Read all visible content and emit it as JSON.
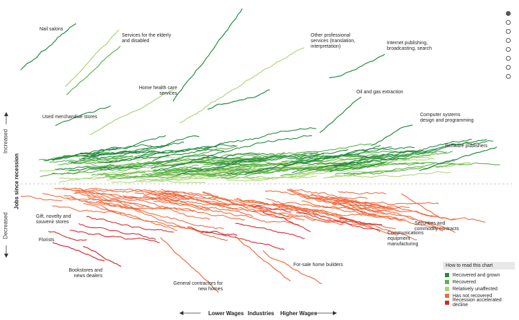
{
  "chart_data": {
    "type": "line",
    "y_axis": {
      "title": "Jobs since recession",
      "increased_label": "Increased",
      "decreased_label": "Decreased"
    },
    "x_axis": {
      "title": "Industries",
      "left_label": "Lower Wages",
      "right_label": "Higher Wages"
    },
    "legend": {
      "title": "How to read this chart",
      "placement": "bottom-right",
      "items": [
        {
          "label": "Recovered and grown",
          "color": "#1f8a3c"
        },
        {
          "label": "Recovered",
          "color": "#5bb04b"
        },
        {
          "label": "Relatively unaffected",
          "color": "#a7d46f"
        },
        {
          "label": "Has not recovered",
          "color": "#f26a3d"
        },
        {
          "label": "Recession accelerated decline",
          "color": "#d7262b"
        }
      ]
    },
    "annotations": [
      "Nail salons",
      "Services for the elderly and disabled",
      "Home health care services",
      "Used merchandise stores",
      "Other professional services (translation, interpretation)",
      "Internet publishing, broadcasting, search",
      "Oil and gas extraction",
      "Computer systems design and programming",
      "Software publishers",
      "Gift, novelty and souvenir stores",
      "Florists",
      "Bookstores and news dealers",
      "General contractors for new homes",
      "For-sale home builders",
      "Communications equipment manufacturing",
      "Securities and commodity contracts"
    ],
    "pager": {
      "count": 8,
      "active_index": 0
    }
  }
}
